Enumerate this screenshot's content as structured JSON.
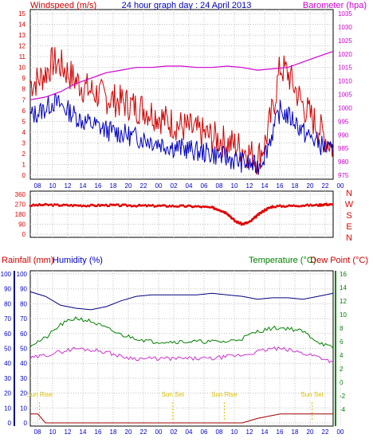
{
  "title": "24 hour graph day : 24 April 2013",
  "colors": {
    "wind": "#d00000",
    "gust": "#d00000",
    "avg": "#0000c0",
    "baro": "#d000d0",
    "dir": "#e00000",
    "humidity": "#000080",
    "temperature": "#008000",
    "dewpoint": "#cc33cc",
    "rain": "#a00000",
    "sun": "#d8c000",
    "grid": "#c0c0c0",
    "frame": "#000000",
    "green_label": "#008000",
    "blue_label": "#0000c0"
  },
  "chart_data": [
    {
      "type": "line",
      "name": "wind-and-barometer",
      "left_label": "Windspeed (m/s)",
      "right_label": "Barometer (hpa)",
      "x_ticks": [
        "08",
        "10",
        "12",
        "14",
        "16",
        "18",
        "20",
        "22",
        "00",
        "02",
        "04",
        "06",
        "08",
        "10",
        "12",
        "14",
        "16",
        "18",
        "20",
        "22",
        "00"
      ],
      "y_left_ticks": [
        0,
        1,
        2,
        3,
        4,
        5,
        6,
        7,
        8,
        9,
        10,
        11,
        12,
        13,
        14,
        15
      ],
      "y_left_range": [
        0,
        15
      ],
      "y_right_ticks": [
        975,
        980,
        985,
        990,
        995,
        1000,
        1005,
        1010,
        1015,
        1020,
        1025,
        1030,
        1035
      ],
      "y_right_range": [
        975,
        1035
      ],
      "grid": true,
      "series": [
        {
          "name": "gust",
          "x": [
            0,
            1,
            2,
            3,
            4,
            5,
            6,
            7,
            8,
            9,
            10,
            11,
            12,
            13,
            14,
            15,
            16,
            17,
            18,
            19,
            20,
            21,
            22,
            23,
            24,
            25,
            26,
            27,
            28,
            29,
            30,
            31,
            32,
            33,
            34,
            35,
            36,
            37,
            38,
            39,
            40
          ],
          "values": [
            8.5,
            8.8,
            9.5,
            10.5,
            10.2,
            9.5,
            8.8,
            8.2,
            7.8,
            7.5,
            7.2,
            7.0,
            6.8,
            6.6,
            6.3,
            6.2,
            5.8,
            5.5,
            5.0,
            4.8,
            4.5,
            4.3,
            4.0,
            3.8,
            3.5,
            3.3,
            3.0,
            2.8,
            2.5,
            2.0,
            1.5,
            3.0,
            6.0,
            10.0,
            9.5,
            8.0,
            6.5,
            5.5,
            4.5,
            3.5,
            2.5
          ]
        },
        {
          "name": "average",
          "x": [
            0,
            1,
            2,
            3,
            4,
            5,
            6,
            7,
            8,
            9,
            10,
            11,
            12,
            13,
            14,
            15,
            16,
            17,
            18,
            19,
            20,
            21,
            22,
            23,
            24,
            25,
            26,
            27,
            28,
            29,
            30,
            31,
            32,
            33,
            34,
            35,
            36,
            37,
            38,
            39,
            40
          ],
          "values": [
            5.5,
            5.8,
            6.2,
            6.8,
            6.5,
            6.0,
            5.5,
            5.0,
            4.8,
            4.5,
            4.2,
            4.0,
            3.9,
            3.7,
            3.5,
            3.4,
            3.2,
            3.0,
            2.8,
            2.6,
            2.5,
            2.4,
            2.2,
            2.1,
            2.0,
            1.8,
            1.6,
            1.4,
            1.2,
            1.0,
            0.8,
            2.0,
            4.0,
            6.0,
            5.5,
            5.0,
            4.0,
            3.5,
            3.0,
            2.5,
            2.0
          ]
        },
        {
          "name": "barometer",
          "x": [
            0,
            2,
            4,
            6,
            8,
            10,
            12,
            14,
            16,
            18,
            20,
            22,
            24,
            26,
            28,
            30,
            32,
            34,
            36,
            38,
            40
          ],
          "values": [
            1003,
            1004,
            1006,
            1009,
            1011,
            1013,
            1014,
            1015,
            1015,
            1015.5,
            1015.5,
            1015,
            1015,
            1015.5,
            1015,
            1014,
            1014.5,
            1015,
            1017,
            1019,
            1021
          ]
        }
      ]
    },
    {
      "type": "scatter",
      "name": "wind-direction",
      "right_letters": [
        "N",
        "W",
        "S",
        "E",
        "N"
      ],
      "y_ticks": [
        0,
        90,
        180,
        270,
        360
      ],
      "y_range": [
        0,
        360
      ],
      "x_ticks": [
        "08",
        "10",
        "12",
        "14",
        "16",
        "18",
        "20",
        "22",
        "00",
        "02",
        "04",
        "06",
        "08",
        "10",
        "12",
        "14",
        "16",
        "18",
        "20",
        "22",
        "00"
      ],
      "series": [
        {
          "name": "direction",
          "x": [
            0,
            2,
            4,
            6,
            8,
            10,
            12,
            14,
            16,
            18,
            20,
            22,
            24,
            25,
            26,
            27,
            28,
            29,
            30,
            31,
            32,
            34,
            36,
            38,
            39,
            40
          ],
          "values": [
            260,
            265,
            262,
            260,
            258,
            262,
            260,
            258,
            256,
            255,
            253,
            250,
            240,
            220,
            190,
            120,
            90,
            110,
            170,
            220,
            250,
            255,
            260,
            262,
            270,
            265
          ]
        }
      ]
    },
    {
      "type": "line",
      "name": "temperature-humidity-rain",
      "left_label_1": "Rainfall (mm)",
      "left_label_2": "Humidity (%)",
      "right_label_1": "Temperature (°C)",
      "right_label_2": "Dew Point (°C)",
      "y_rain_ticks": [
        0,
        10,
        20,
        30,
        40,
        50,
        60,
        70,
        80,
        90,
        100
      ],
      "y_humidity_ticks": [
        0,
        10,
        20,
        30,
        40,
        50,
        60,
        70,
        80,
        90,
        100
      ],
      "y_temp_ticks": [
        -4,
        -2,
        0,
        2,
        4,
        6,
        8,
        10,
        12,
        14,
        16
      ],
      "y_temp_range": [
        -6,
        16
      ],
      "x_ticks": [
        "08",
        "10",
        "12",
        "14",
        "16",
        "18",
        "20",
        "22",
        "00",
        "02",
        "04",
        "06",
        "08",
        "10",
        "12",
        "14",
        "16",
        "18",
        "20",
        "22",
        "00"
      ],
      "annotations": [
        "Sun Rise",
        "Sun Set",
        "Sun Rise",
        "Sun Set"
      ],
      "series": [
        {
          "name": "humidity",
          "x": [
            0,
            2,
            4,
            6,
            8,
            10,
            12,
            14,
            16,
            18,
            20,
            22,
            24,
            26,
            28,
            30,
            32,
            34,
            36,
            38,
            40
          ],
          "values": [
            88,
            85,
            79,
            77,
            76,
            78,
            82,
            85,
            86,
            86,
            86,
            86,
            87,
            86,
            85,
            83,
            84,
            84,
            83,
            85,
            87
          ]
        },
        {
          "name": "temperature",
          "x": [
            0,
            2,
            4,
            6,
            8,
            10,
            12,
            14,
            16,
            18,
            20,
            22,
            24,
            26,
            28,
            30,
            32,
            34,
            36,
            38,
            40
          ],
          "values": [
            5.5,
            6.5,
            8.5,
            9.5,
            9.0,
            8.0,
            7.0,
            6.5,
            6.0,
            6.0,
            6.0,
            6.0,
            6.0,
            6.0,
            6.5,
            7.5,
            8.0,
            8.0,
            7.5,
            6.0,
            5.0
          ]
        },
        {
          "name": "dewpoint",
          "x": [
            0,
            2,
            4,
            6,
            8,
            10,
            12,
            14,
            16,
            18,
            20,
            22,
            24,
            26,
            28,
            30,
            32,
            34,
            36,
            38,
            40
          ],
          "values": [
            3.5,
            4.0,
            4.5,
            5.0,
            4.8,
            4.5,
            3.8,
            3.5,
            3.5,
            3.5,
            3.5,
            3.5,
            3.5,
            3.8,
            4.0,
            4.5,
            5.0,
            4.8,
            4.3,
            3.8,
            3.0
          ]
        },
        {
          "name": "rainfall",
          "x": [
            0,
            1,
            2,
            28,
            30,
            32,
            33,
            34,
            36,
            38,
            40
          ],
          "values": [
            6,
            6,
            0,
            0,
            3,
            5,
            6,
            6,
            6,
            6,
            6
          ]
        }
      ]
    }
  ]
}
